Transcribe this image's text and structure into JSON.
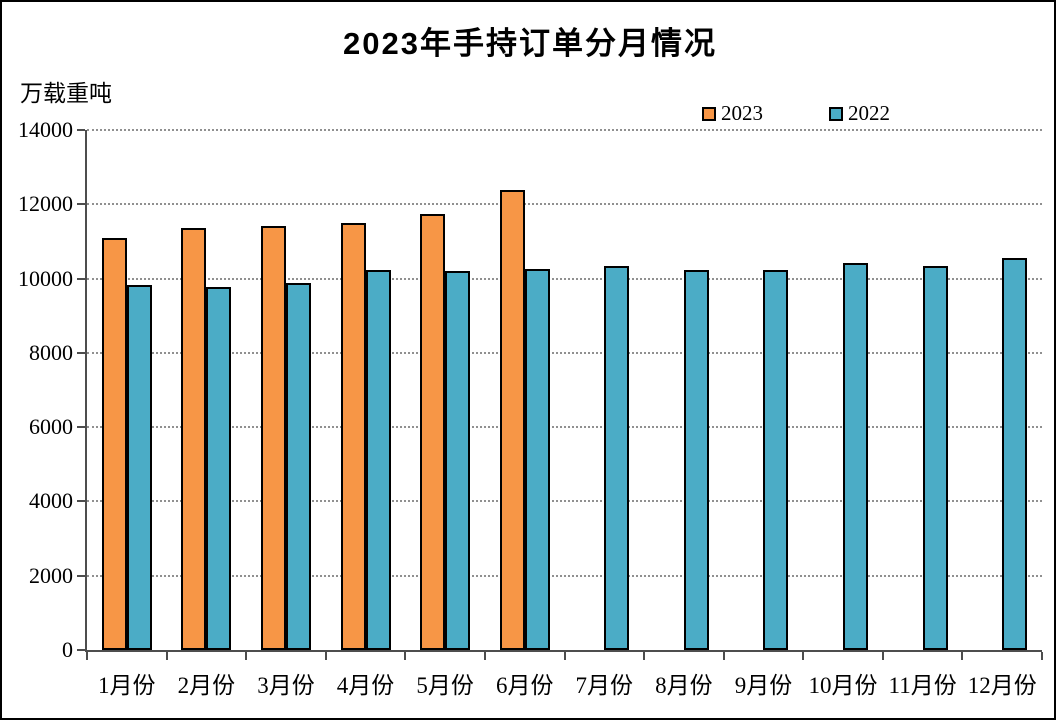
{
  "chart_data": {
    "type": "bar",
    "title": "2023年手持订单分月情况",
    "unit_label": "万载重吨",
    "categories": [
      "1月份",
      "2月份",
      "3月份",
      "4月份",
      "5月份",
      "6月份",
      "7月份",
      "8月份",
      "9月份",
      "10月份",
      "11月份",
      "12月份"
    ],
    "series": [
      {
        "name": "2023",
        "color": "#F79646",
        "values": [
          11100,
          11350,
          11420,
          11500,
          11750,
          12380,
          null,
          null,
          null,
          null,
          null,
          null
        ]
      },
      {
        "name": "2022",
        "color": "#4BACC6",
        "values": [
          9820,
          9780,
          9880,
          10220,
          10200,
          10260,
          10340,
          10220,
          10240,
          10430,
          10350,
          10560
        ]
      }
    ],
    "ylim": [
      0,
      14000
    ],
    "ytick_step": 2000,
    "ytick_labels": [
      "0",
      "2000",
      "4000",
      "6000",
      "8000",
      "10000",
      "12000",
      "14000"
    ],
    "grid": "horizontal-dotted-gray",
    "legend_position": "top-right",
    "bar_border_color": "#000000",
    "axis_color": "#4d4d4d",
    "background": "#FFFFFF"
  }
}
